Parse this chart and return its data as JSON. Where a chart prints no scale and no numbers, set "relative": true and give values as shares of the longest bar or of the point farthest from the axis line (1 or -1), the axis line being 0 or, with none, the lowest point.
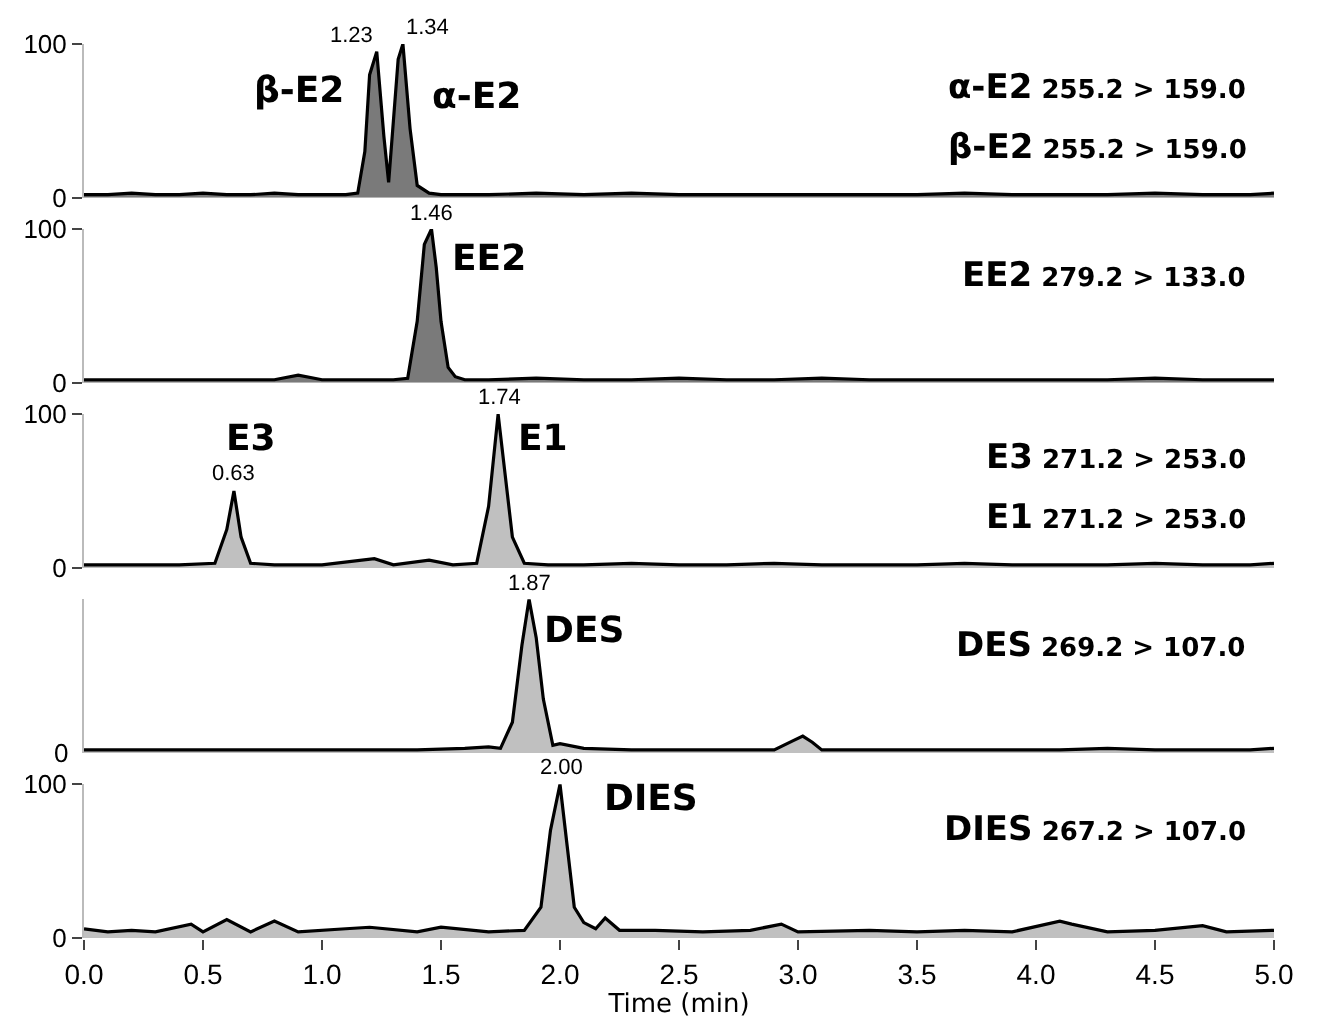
{
  "chart_data": [
    {
      "type": "area",
      "xlim": [
        0,
        5
      ],
      "ylim": [
        0,
        100
      ],
      "yticks": [
        0,
        100
      ],
      "tick_labels": "y",
      "x": [
        0,
        0.1,
        0.2,
        0.3,
        0.4,
        0.5,
        0.6,
        0.7,
        0.8,
        0.9,
        1.0,
        1.1,
        1.15,
        1.18,
        1.2,
        1.23,
        1.26,
        1.28,
        1.3,
        1.32,
        1.34,
        1.37,
        1.4,
        1.45,
        1.5,
        1.7,
        1.9,
        2.1,
        2.3,
        2.5,
        2.7,
        2.9,
        3.1,
        3.3,
        3.5,
        3.7,
        3.9,
        4.1,
        4.3,
        4.5,
        4.7,
        4.9,
        5.0
      ],
      "series": [
        {
          "color": "#000000",
          "values": [
            2,
            2,
            3,
            2,
            2,
            3,
            2,
            2,
            3,
            2,
            2,
            2,
            3,
            30,
            80,
            95,
            40,
            10,
            50,
            90,
            100,
            45,
            8,
            3,
            2,
            2,
            3,
            2,
            3,
            2,
            2,
            2,
            2,
            2,
            2,
            3,
            2,
            2,
            2,
            3,
            2,
            2,
            3
          ]
        }
      ],
      "annotations": [
        {
          "text": "1.23",
          "x": 1.23,
          "y": 95
        },
        {
          "text": "1.34",
          "x": 1.34,
          "y": 100
        },
        "β-E2",
        "α-E2",
        "α-E2 255.2 > 159.0",
        "β-E2 255.2 > 159.0"
      ]
    },
    {
      "type": "area",
      "xlim": [
        0,
        5
      ],
      "ylim": [
        0,
        100
      ],
      "yticks": [
        0,
        100
      ],
      "tick_labels": "y",
      "x": [
        0,
        0.2,
        0.4,
        0.6,
        0.8,
        0.9,
        1.0,
        1.2,
        1.3,
        1.36,
        1.4,
        1.43,
        1.46,
        1.48,
        1.5,
        1.53,
        1.56,
        1.6,
        1.7,
        1.9,
        2.1,
        2.3,
        2.5,
        2.7,
        2.9,
        3.1,
        3.3,
        3.5,
        3.7,
        3.9,
        4.1,
        4.3,
        4.5,
        4.7,
        4.9,
        5.0
      ],
      "series": [
        {
          "color": "#000000",
          "values": [
            2,
            2,
            2,
            2,
            2,
            5,
            2,
            2,
            2,
            3,
            40,
            90,
            100,
            75,
            40,
            10,
            4,
            2,
            2,
            3,
            2,
            2,
            3,
            2,
            2,
            3,
            2,
            2,
            2,
            2,
            2,
            2,
            3,
            2,
            2,
            2
          ]
        }
      ],
      "annotations": [
        {
          "text": "1.46",
          "x": 1.46,
          "y": 100
        },
        "EE2",
        "EE2 279.2 > 133.0"
      ]
    },
    {
      "type": "area",
      "xlim": [
        0,
        5
      ],
      "ylim": [
        0,
        100
      ],
      "yticks": [
        0,
        100
      ],
      "tick_labels": "y",
      "x": [
        0,
        0.2,
        0.4,
        0.55,
        0.6,
        0.63,
        0.66,
        0.7,
        0.8,
        1.0,
        1.22,
        1.3,
        1.45,
        1.55,
        1.65,
        1.7,
        1.74,
        1.77,
        1.8,
        1.85,
        1.95,
        2.1,
        2.3,
        2.5,
        2.7,
        2.9,
        3.1,
        3.3,
        3.5,
        3.7,
        3.9,
        4.1,
        4.3,
        4.5,
        4.7,
        4.9,
        5.0
      ],
      "series": [
        {
          "color": "#000000",
          "values": [
            2,
            2,
            2,
            3,
            25,
            50,
            20,
            3,
            2,
            2,
            6,
            2,
            5,
            2,
            3,
            40,
            100,
            60,
            20,
            3,
            2,
            2,
            3,
            2,
            2,
            3,
            2,
            2,
            2,
            3,
            2,
            2,
            2,
            3,
            2,
            2,
            3
          ]
        }
      ],
      "annotations": [
        {
          "text": "0.63",
          "x": 0.63,
          "y": 50
        },
        {
          "text": "1.74",
          "x": 1.74,
          "y": 100
        },
        "E3",
        "E1",
        "E3 271.2 > 253.0",
        "E1 271.2 > 253.0"
      ]
    },
    {
      "type": "area",
      "xlim": [
        0,
        5
      ],
      "relative": true,
      "tick_labels": false,
      "x": [
        0,
        0.2,
        0.4,
        0.6,
        0.8,
        1.0,
        1.2,
        1.4,
        1.6,
        1.7,
        1.75,
        1.8,
        1.84,
        1.87,
        1.9,
        1.93,
        1.97,
        2.0,
        2.1,
        2.3,
        2.5,
        2.7,
        2.9,
        2.98,
        3.02,
        3.06,
        3.1,
        3.3,
        3.5,
        3.7,
        3.9,
        4.1,
        4.3,
        4.5,
        4.7,
        4.9,
        5.0
      ],
      "series": [
        {
          "color": "#000000",
          "values": [
            0.02,
            0.02,
            0.02,
            0.02,
            0.02,
            0.02,
            0.02,
            0.02,
            0.03,
            0.04,
            0.03,
            0.2,
            0.7,
            1,
            0.75,
            0.35,
            0.05,
            0.06,
            0.03,
            0.02,
            0.02,
            0.02,
            0.02,
            0.08,
            0.11,
            0.07,
            0.02,
            0.02,
            0.02,
            0.02,
            0.02,
            0.02,
            0.03,
            0.02,
            0.02,
            0.02,
            0.03
          ]
        }
      ],
      "annotations": [
        {
          "text": "1.87",
          "x": 1.87,
          "y": 1
        },
        "DES",
        "DES 269.2 > 107.0",
        "0"
      ]
    },
    {
      "type": "area",
      "xlim": [
        0,
        5
      ],
      "ylim": [
        0,
        100
      ],
      "yticks": [
        0,
        100
      ],
      "xticks": [
        {
          "value": 0,
          "label": "0.0"
        },
        0.5,
        {
          "value": 1,
          "label": "1.0"
        },
        1.5,
        {
          "value": 2,
          "label": "2.0"
        },
        2.5,
        {
          "value": 3,
          "label": "3.0"
        },
        3.5,
        {
          "value": 4,
          "label": "4.0"
        },
        4.5,
        {
          "value": 5,
          "label": "5.0"
        }
      ],
      "xlabel": "Time (min)",
      "x": [
        0,
        0.1,
        0.2,
        0.3,
        0.45,
        0.5,
        0.6,
        0.7,
        0.8,
        0.9,
        1.1,
        1.2,
        1.4,
        1.5,
        1.7,
        1.85,
        1.92,
        1.96,
        2.0,
        2.03,
        2.06,
        2.1,
        2.15,
        2.19,
        2.25,
        2.4,
        2.6,
        2.8,
        2.93,
        3.0,
        3.3,
        3.5,
        3.7,
        3.9,
        4.1,
        4.15,
        4.3,
        4.5,
        4.7,
        4.8,
        5.0
      ],
      "series": [
        {
          "color": "#000000",
          "values": [
            6,
            4,
            5,
            4,
            9,
            4,
            12,
            4,
            11,
            4,
            6,
            7,
            4,
            7,
            4,
            5,
            20,
            70,
            100,
            60,
            20,
            10,
            6,
            13,
            5,
            5,
            4,
            5,
            9,
            4,
            5,
            4,
            5,
            4,
            11,
            9,
            4,
            5,
            8,
            4,
            5
          ]
        }
      ],
      "annotations": [
        {
          "text": "2.00",
          "x": 2.0,
          "y": 100
        },
        "DIES",
        "DIES 267.2 > 107.0"
      ]
    }
  ]
}
